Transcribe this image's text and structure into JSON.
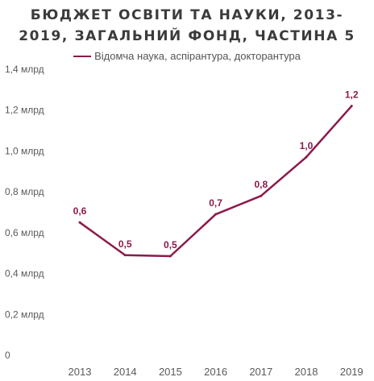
{
  "chart_data": {
    "type": "line",
    "title_lines": [
      "БЮДЖЕТ ОСВІТИ ТА НАУКИ, 2013-",
      "2019, ЗАГАЛЬНИЙ ФОНД, ЧАСТИНА 5"
    ],
    "xlabel": "",
    "ylabel": "",
    "categories": [
      "2013",
      "2014",
      "2015",
      "2016",
      "2017",
      "2018",
      "2019"
    ],
    "series": [
      {
        "name": "Відомча наука, аспірантура, докторантура",
        "color": "#8b1a4b",
        "values": [
          0.65,
          0.49,
          0.485,
          0.69,
          0.78,
          0.97,
          1.22
        ],
        "data_labels": [
          "0,6",
          "0,5",
          "0,5",
          "0,7",
          "0,8",
          "1,0",
          "1,2"
        ]
      }
    ],
    "ylim": [
      0,
      1.4
    ],
    "y_ticks": [
      0,
      0.2,
      0.4,
      0.6,
      0.8,
      1.0,
      1.2,
      1.4
    ],
    "y_tick_labels": [
      "0",
      "0,2 млрд",
      "0,4 млрд",
      "0,6 млрд",
      "0,8 млрд",
      "1,0 млрд",
      "1,2 млрд",
      "1,4 млрд"
    ],
    "grid": false,
    "legend_position": "top"
  }
}
